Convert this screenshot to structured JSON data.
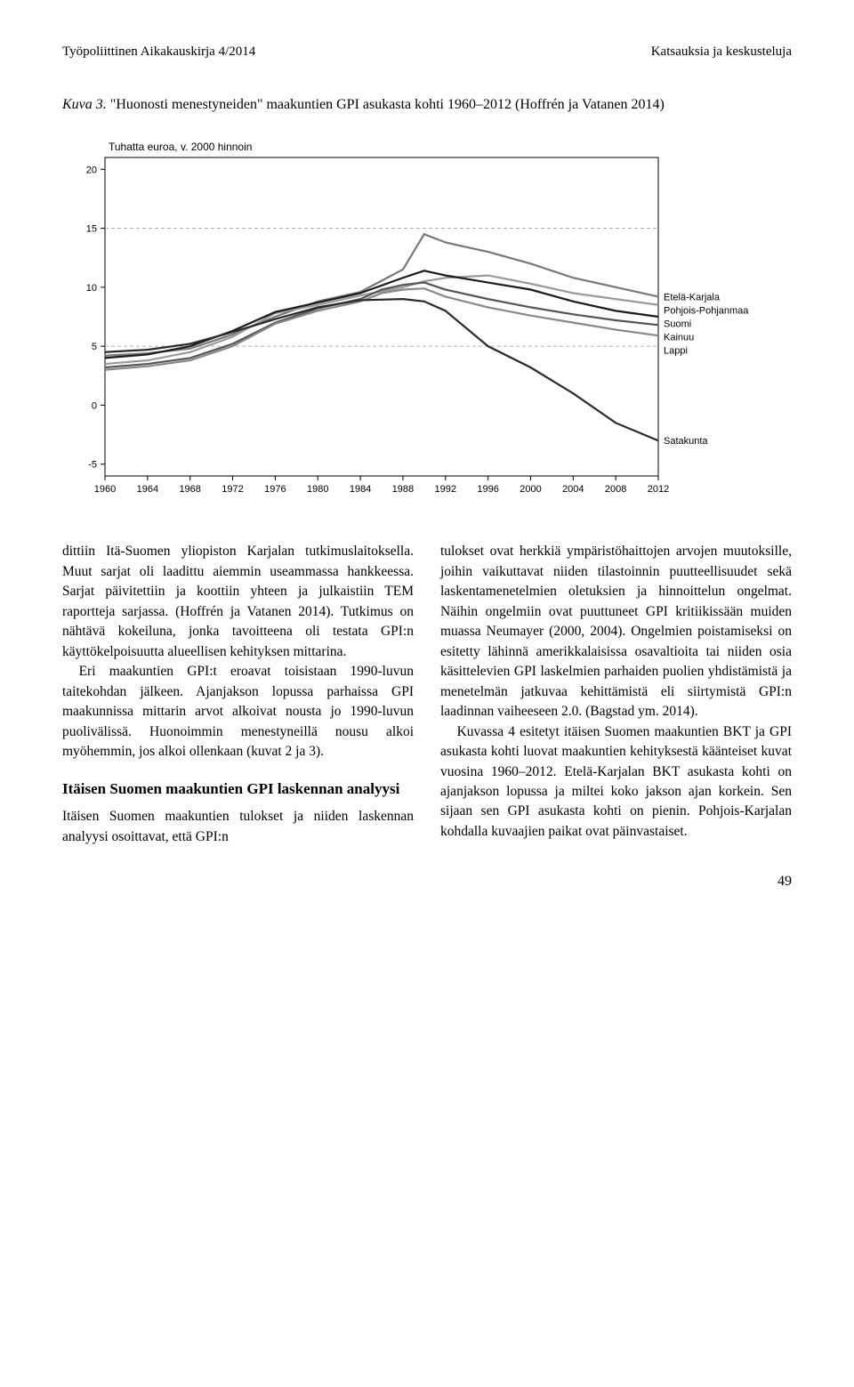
{
  "header": {
    "left": "Työpoliittinen Aikakauskirja 4/2014",
    "right": "Katsauksia ja keskusteluja"
  },
  "figure": {
    "label": "Kuva 3.",
    "caption": "\"Huonosti menestyneiden\" maakuntien GPI asukasta kohti 1960–2012 (Hoffrén ja Vatanen 2014)",
    "y_axis_label": "Tuhatta euroa, v. 2000 hinnoin",
    "type": "line",
    "x_ticks": [
      "1960",
      "1964",
      "1968",
      "1972",
      "1976",
      "1980",
      "1984",
      "1988",
      "1992",
      "1996",
      "2000",
      "2004",
      "2008",
      "2012"
    ],
    "y_ticks": [
      -5,
      0,
      5,
      10,
      15,
      20
    ],
    "ylim": [
      -6,
      21
    ],
    "xlim": [
      1960,
      2012
    ],
    "grid_lines_y": [
      5,
      15
    ],
    "grid_style": "dashed",
    "grid_color": "#b0b0b0",
    "axis_color": "#000000",
    "background_color": "#ffffff",
    "line_width": 2.2,
    "label_fontsize": 12,
    "tick_fontsize": 11,
    "legend_labels": [
      "Etelä-Karjala",
      "Pohjois-Pohjanmaa",
      "Suomi",
      "Kainuu",
      "Lappi",
      "Satakunta"
    ],
    "series": {
      "Etelä-Karjala": {
        "color": "#777777",
        "points": [
          [
            1960,
            4.2
          ],
          [
            1964,
            4.4
          ],
          [
            1968,
            4.8
          ],
          [
            1972,
            6.0
          ],
          [
            1976,
            7.5
          ],
          [
            1980,
            8.8
          ],
          [
            1984,
            9.6
          ],
          [
            1988,
            11.5
          ],
          [
            1990,
            14.5
          ],
          [
            1992,
            13.8
          ],
          [
            1996,
            13.0
          ],
          [
            2000,
            12.0
          ],
          [
            2004,
            10.8
          ],
          [
            2008,
            10.0
          ],
          [
            2012,
            9.2
          ]
        ]
      },
      "Pohjois-Pohjanmaa": {
        "color": "#9a9a9a",
        "points": [
          [
            1960,
            3.5
          ],
          [
            1964,
            3.8
          ],
          [
            1968,
            4.5
          ],
          [
            1972,
            5.8
          ],
          [
            1976,
            7.8
          ],
          [
            1980,
            8.5
          ],
          [
            1984,
            9.3
          ],
          [
            1988,
            10.0
          ],
          [
            1990,
            10.5
          ],
          [
            1992,
            10.8
          ],
          [
            1996,
            11.0
          ],
          [
            2000,
            10.3
          ],
          [
            2004,
            9.5
          ],
          [
            2008,
            9.0
          ],
          [
            2012,
            8.5
          ]
        ]
      },
      "Suomi": {
        "color": "#1a1a1a",
        "points": [
          [
            1960,
            4.0
          ],
          [
            1964,
            4.3
          ],
          [
            1968,
            5.0
          ],
          [
            1972,
            6.3
          ],
          [
            1976,
            7.9
          ],
          [
            1980,
            8.7
          ],
          [
            1984,
            9.5
          ],
          [
            1988,
            10.8
          ],
          [
            1990,
            11.4
          ],
          [
            1992,
            11.0
          ],
          [
            1996,
            10.4
          ],
          [
            2000,
            9.8
          ],
          [
            2004,
            8.8
          ],
          [
            2008,
            8.0
          ],
          [
            2012,
            7.5
          ]
        ]
      },
      "Kainuu": {
        "color": "#555555",
        "points": [
          [
            1960,
            3.2
          ],
          [
            1964,
            3.5
          ],
          [
            1968,
            4.0
          ],
          [
            1972,
            5.2
          ],
          [
            1976,
            7.0
          ],
          [
            1980,
            8.2
          ],
          [
            1984,
            9.0
          ],
          [
            1986,
            9.8
          ],
          [
            1988,
            10.2
          ],
          [
            1990,
            10.4
          ],
          [
            1992,
            9.8
          ],
          [
            1996,
            9.0
          ],
          [
            2000,
            8.3
          ],
          [
            2004,
            7.7
          ],
          [
            2008,
            7.2
          ],
          [
            2012,
            6.8
          ]
        ]
      },
      "Lappi": {
        "color": "#888888",
        "points": [
          [
            1960,
            3.0
          ],
          [
            1964,
            3.3
          ],
          [
            1968,
            3.8
          ],
          [
            1972,
            5.0
          ],
          [
            1976,
            6.9
          ],
          [
            1980,
            8.0
          ],
          [
            1984,
            8.8
          ],
          [
            1986,
            9.5
          ],
          [
            1988,
            9.8
          ],
          [
            1990,
            9.9
          ],
          [
            1992,
            9.2
          ],
          [
            1996,
            8.3
          ],
          [
            2000,
            7.6
          ],
          [
            2004,
            7.0
          ],
          [
            2008,
            6.4
          ],
          [
            2012,
            5.9
          ]
        ]
      },
      "Satakunta": {
        "color": "#2a2a2a",
        "points": [
          [
            1960,
            4.5
          ],
          [
            1964,
            4.7
          ],
          [
            1968,
            5.2
          ],
          [
            1972,
            6.2
          ],
          [
            1976,
            7.3
          ],
          [
            1980,
            8.3
          ],
          [
            1984,
            8.9
          ],
          [
            1988,
            9.0
          ],
          [
            1990,
            8.8
          ],
          [
            1992,
            8.0
          ],
          [
            1994,
            6.5
          ],
          [
            1996,
            5.0
          ],
          [
            2000,
            3.2
          ],
          [
            2004,
            1.0
          ],
          [
            2008,
            -1.5
          ],
          [
            2012,
            -3.0
          ]
        ]
      }
    }
  },
  "body": {
    "p1": "dittiin Itä-Suomen yliopiston Karjalan tutkimuslaitoksella. Muut sarjat oli laadittu aiemmin useammassa hankkeessa. Sarjat päivitettiin ja koottiin yhteen ja julkaistiin TEM raportteja sarjassa. (Hoffrén ja Vatanen 2014). Tutkimus on nähtävä kokeiluna, jonka tavoitteena oli testata GPI:n käyttökelpoisuutta alueellisen kehityksen mittarina.",
    "p2": "Eri maakuntien GPI:t eroavat toisistaan 1990-luvun taitekohdan jälkeen. Ajanjakson lopussa parhaissa GPI maakunnissa mittarin arvot alkoivat nousta jo 1990-luvun puolivälissä. Huonoimmin menestyneillä nousu alkoi myöhemmin, jos alkoi ollenkaan (kuvat 2 ja 3).",
    "heading": "Itäisen Suomen maakuntien GPI laskennan analyysi",
    "p3": "Itäisen Suomen maakuntien tulokset ja niiden laskennan analyysi osoittavat, että GPI:n",
    "p4": "tulokset ovat herkkiä ympäristöhaittojen arvojen muutoksille, joihin vaikuttavat niiden tilastoinnin puutteellisuudet sekä laskentamenetelmien oletuksien ja hinnoittelun ongelmat. Näihin ongelmiin ovat puuttuneet GPI kritiikissään muiden muassa Neumayer (2000, 2004). Ongelmien poistamiseksi on esitetty lähinnä amerikkalaisissa osavaltioita tai niiden osia käsittelevien GPI laskelmien parhaiden puolien yhdistämistä ja menetelmän jatkuvaa kehittämistä eli siirtymistä GPI:n laadinnan vaiheeseen 2.0. (Bagstad ym. 2014).",
    "p5": "Kuvassa 4 esitetyt itäisen Suomen maakuntien BKT ja GPI asukasta kohti luovat maakuntien kehityksestä käänteiset kuvat vuosina 1960–2012. Etelä-Karjalan BKT asukasta kohti on ajanjakson lopussa ja miltei koko jakson ajan korkein. Sen sijaan sen GPI asukasta kohti on pienin. Pohjois-Karjalan kohdalla kuvaajien paikat ovat päinvastaiset."
  },
  "page_number": "49"
}
